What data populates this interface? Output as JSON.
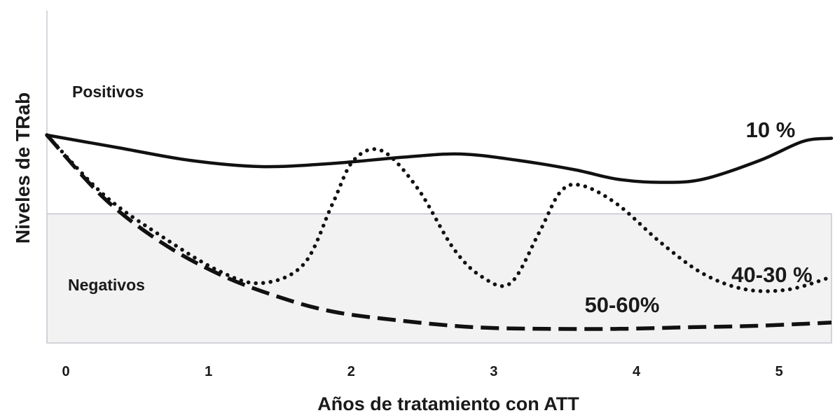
{
  "chart_data": {
    "type": "line",
    "xlabel": "Años de tratamiento con ATT",
    "ylabel": "Niveles de TRab",
    "x_ticks": [
      "0",
      "1",
      "2",
      "3",
      "4",
      "5"
    ],
    "xlim": [
      0,
      5.5
    ],
    "ylim": [
      0,
      1
    ],
    "y_ticks_shown": false,
    "grid": false,
    "legend": "none",
    "regions": [
      {
        "label": "Positivos",
        "range": [
          0.41,
          1.0
        ],
        "color": "#ffffff"
      },
      {
        "label": "Negativos",
        "range": [
          0.0,
          0.41
        ],
        "color": "#f2f2f2"
      }
    ],
    "series": [
      {
        "label": "10 %",
        "style": "solid",
        "x": [
          0,
          0.5,
          1.0,
          1.5,
          2.0,
          2.5,
          2.9,
          3.3,
          3.7,
          4.0,
          4.3,
          4.6,
          5.0,
          5.3,
          5.5
        ],
        "y": [
          0.66,
          0.62,
          0.58,
          0.56,
          0.57,
          0.59,
          0.6,
          0.58,
          0.55,
          0.52,
          0.51,
          0.52,
          0.58,
          0.64,
          0.65
        ]
      },
      {
        "label": "40-30 %",
        "style": "dotted",
        "x": [
          0,
          0.4,
          0.8,
          1.2,
          1.5,
          1.8,
          2.0,
          2.15,
          2.35,
          2.6,
          2.85,
          3.05,
          3.25,
          3.45,
          3.6,
          3.75,
          4.0,
          4.3,
          4.6,
          4.9,
          5.2,
          5.5
        ],
        "y": [
          0.66,
          0.47,
          0.34,
          0.23,
          0.19,
          0.25,
          0.44,
          0.58,
          0.61,
          0.49,
          0.3,
          0.21,
          0.19,
          0.35,
          0.48,
          0.5,
          0.44,
          0.32,
          0.22,
          0.17,
          0.17,
          0.21
        ]
      },
      {
        "label": "50-60%",
        "style": "dashed",
        "x": [
          0,
          0.4,
          0.8,
          1.2,
          1.6,
          2.0,
          2.5,
          3.0,
          3.5,
          4.0,
          4.5,
          5.0,
          5.5
        ],
        "y": [
          0.66,
          0.46,
          0.32,
          0.22,
          0.15,
          0.1,
          0.07,
          0.05,
          0.045,
          0.045,
          0.05,
          0.055,
          0.065
        ]
      }
    ]
  }
}
